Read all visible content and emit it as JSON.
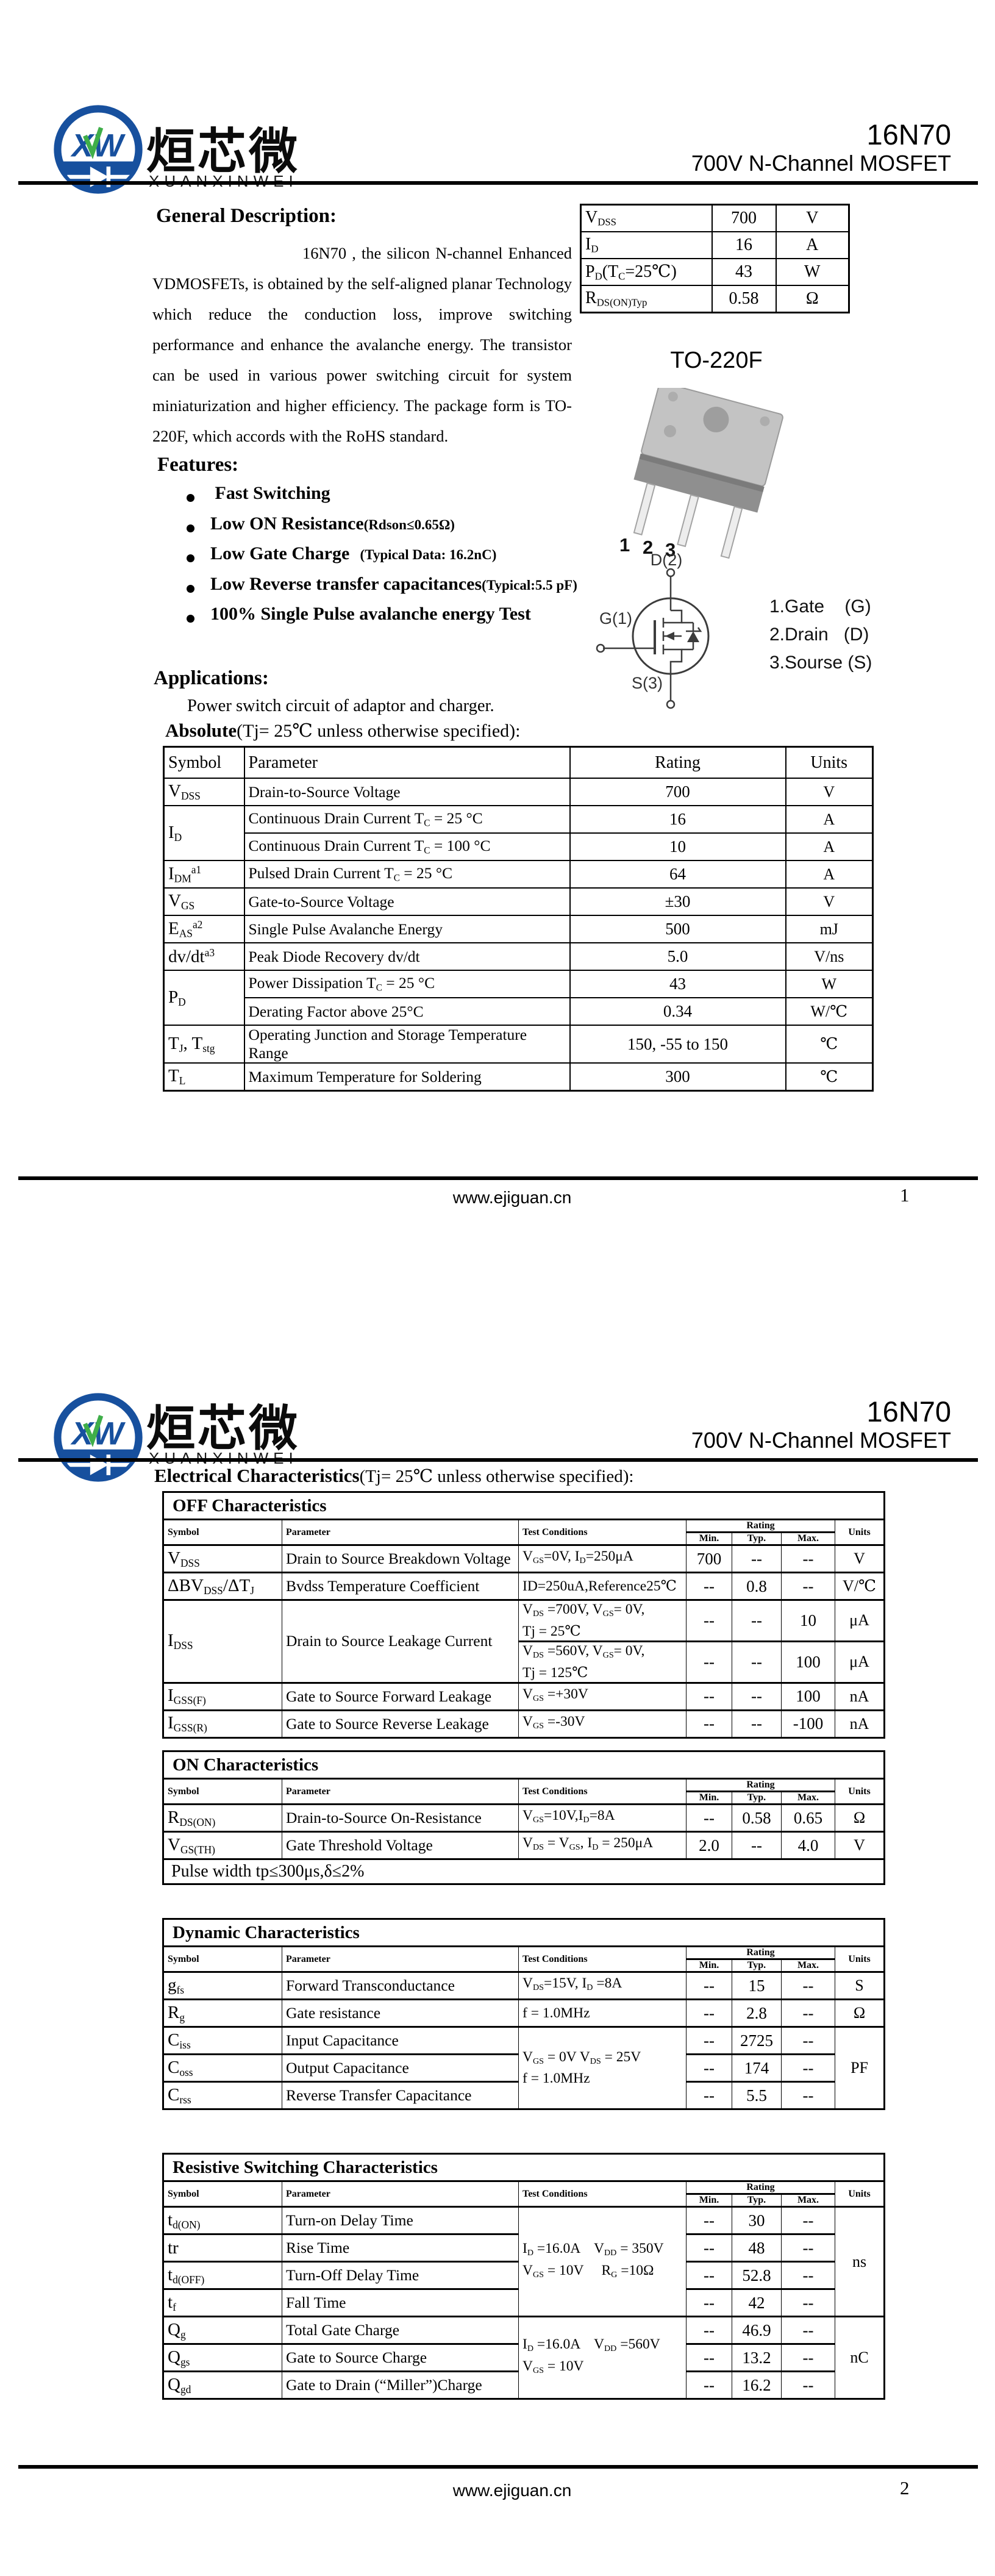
{
  "brand": {
    "cn": "烜芯微",
    "en": "XUANXINWEI"
  },
  "doc": {
    "part": "16N70",
    "subtitle": "700V N-Channel MOSFET"
  },
  "footer": {
    "site": "www.ejiguan.cn",
    "page1": "1",
    "page2": "2"
  },
  "colors": {
    "logo_blue": "#17509e",
    "logo_green": "#3fae49",
    "text": "#000000"
  },
  "page1": {
    "general_title": "General Description:",
    "general_text": "16N70 , the silicon N-channel Enhanced VDMOSFETs, is obtained by the self-aligned planar Technology which reduce the conduction loss, improve switching performance and enhance the avalanche energy. The transistor can be used in various power switching circuit for system miniaturization and higher efficiency. The package form is TO-220F, which accords with the RoHS standard.",
    "quick_specs": [
      {
        "symbol": "V~DSS~",
        "value": "700",
        "unit": "V"
      },
      {
        "symbol": "I~D~",
        "value": "16",
        "unit": "A"
      },
      {
        "symbol": "P~D~(T~C~=25℃)",
        "value": "43",
        "unit": "W"
      },
      {
        "symbol": "R~DS(ON)Typ~",
        "value": "0.58",
        "unit": "Ω"
      }
    ],
    "package": {
      "name": "TO-220F",
      "pins": [
        "1",
        "2",
        "3"
      ],
      "drain": "D(2)",
      "gate": "G(1)",
      "source": "S(3)",
      "legend": [
        "1.Gate    (G)",
        "2.Drain   (D)",
        "3.Sourse (S)"
      ]
    },
    "features_title": "Features:",
    "features": [
      {
        "main": " Fast Switching",
        "note": ""
      },
      {
        "main": "Low ON Resistance",
        "note": "(Rdson≤0.65Ω)"
      },
      {
        "main": "Low Gate Charge",
        "note": "   (Typical Data: 16.2nC)"
      },
      {
        "main": "Low Reverse transfer capacitances",
        "note": "(Typical:5.5 pF)"
      },
      {
        "main": "100% Single Pulse avalanche energy Test",
        "note": ""
      }
    ],
    "applications_title": "Applications:",
    "applications_text": "Power switch circuit of adaptor and charger.",
    "absolute_title": "Absolute",
    "absolute_note": "(Tj= 25℃ unless otherwise specified):",
    "absolute_headers": [
      "Symbol",
      "Parameter",
      "Rating",
      "Units"
    ],
    "absolute_rows": [
      [
        {
          "t": "V~DSS~"
        },
        {
          "t": "Drain-to-Source Voltage"
        },
        {
          "t": "700"
        },
        {
          "t": "V"
        }
      ],
      [
        {
          "t": "I~D~",
          "rs": 2
        },
        {
          "t": "Continuous Drain Current T~C~ = 25 °C"
        },
        {
          "t": "16"
        },
        {
          "t": "A"
        }
      ],
      [
        {
          "t": "Continuous Drain Current T~C~ = 100 °C"
        },
        {
          "t": "10"
        },
        {
          "t": "A"
        }
      ],
      [
        {
          "t": "I~DM~^a1^"
        },
        {
          "t": "Pulsed Drain Current T~C~ = 25 °C"
        },
        {
          "t": "64"
        },
        {
          "t": "A"
        }
      ],
      [
        {
          "t": "V~GS~"
        },
        {
          "t": "Gate-to-Source Voltage"
        },
        {
          "t": "±30"
        },
        {
          "t": "V"
        }
      ],
      [
        {
          "t": "E~AS~^a2^"
        },
        {
          "t": "Single Pulse Avalanche Energy"
        },
        {
          "t": "500"
        },
        {
          "t": "mJ"
        }
      ],
      [
        {
          "t": "dv/dt^a3^"
        },
        {
          "t": "Peak Diode Recovery dv/dt"
        },
        {
          "t": "5.0"
        },
        {
          "t": "V/ns"
        }
      ],
      [
        {
          "t": "P~D~",
          "rs": 2
        },
        {
          "t": "Power Dissipation T~C~ = 25 °C"
        },
        {
          "t": "43"
        },
        {
          "t": "W"
        }
      ],
      [
        {
          "t": "Derating Factor above 25°C"
        },
        {
          "t": "0.34"
        },
        {
          "t": "W/℃"
        }
      ],
      [
        {
          "t": "T~J~, T~stg~"
        },
        {
          "t": "Operating Junction and Storage Temperature Range"
        },
        {
          "t": "150, -55 to 150"
        },
        {
          "t": "℃"
        }
      ],
      [
        {
          "t": "T~L~"
        },
        {
          "t": "Maximum Temperature for Soldering"
        },
        {
          "t": "300"
        },
        {
          "t": "℃"
        }
      ]
    ]
  },
  "page2": {
    "ec_title": "Electrical Characteristics",
    "ec_note": "(Tj= 25℃  unless otherwise specified):",
    "col_headers": {
      "symbol": "Symbol",
      "parameter": "Parameter",
      "cond": "Test Conditions",
      "rating": "Rating",
      "min": "Min.",
      "typ": "Typ.",
      "max": "Max.",
      "units": "Units"
    },
    "tables": [
      {
        "section": "OFF Characteristics",
        "rows": [
          [
            {
              "t": "V~DSS~"
            },
            {
              "t": "Drain to Source Breakdown Voltage"
            },
            {
              "t": "V~GS~=0V, I~D~=250μA"
            },
            {
              "t": "700"
            },
            {
              "t": "--"
            },
            {
              "t": "--"
            },
            {
              "t": "V"
            }
          ],
          [
            {
              "t": "ΔBV~DSS~/ΔT~J~"
            },
            {
              "t": "Bvdss Temperature Coefficient"
            },
            {
              "t": "ID=250uA,Reference25℃"
            },
            {
              "t": "--"
            },
            {
              "t": "0.8"
            },
            {
              "t": "--"
            },
            {
              "t": "V/℃"
            }
          ],
          [
            {
              "t": "I~DSS~",
              "rs": 2
            },
            {
              "t": "Drain to Source Leakage Current",
              "rs": 2
            },
            {
              "t": "V~DS~ =700V, V~GS~= 0V,\nTj = 25℃"
            },
            {
              "t": "--"
            },
            {
              "t": "--"
            },
            {
              "t": "10"
            },
            {
              "t": "μA"
            }
          ],
          [
            {
              "t": "V~DS~ =560V, V~GS~= 0V,\nTj = 125℃"
            },
            {
              "t": "--"
            },
            {
              "t": "--"
            },
            {
              "t": "100"
            },
            {
              "t": "μA"
            }
          ],
          [
            {
              "t": "I~GSS(F)~"
            },
            {
              "t": "Gate to Source Forward Leakage"
            },
            {
              "t": "V~GS~ =+30V"
            },
            {
              "t": "--"
            },
            {
              "t": "--"
            },
            {
              "t": "100"
            },
            {
              "t": "nA"
            }
          ],
          [
            {
              "t": "I~GSS(R)~"
            },
            {
              "t": "Gate to Source Reverse Leakage"
            },
            {
              "t": "V~GS~ =-30V"
            },
            {
              "t": "--"
            },
            {
              "t": "--"
            },
            {
              "t": "-100"
            },
            {
              "t": "nA"
            }
          ]
        ]
      },
      {
        "section": "ON Characteristics",
        "note": "Pulse width tp≤300μs,δ≤2%",
        "rows": [
          [
            {
              "t": "R~DS(ON)~"
            },
            {
              "t": "Drain-to-Source On-Resistance"
            },
            {
              "t": "V~GS~=10V,I~D~=8A"
            },
            {
              "t": "--"
            },
            {
              "t": "0.58"
            },
            {
              "t": "0.65"
            },
            {
              "t": "Ω"
            }
          ],
          [
            {
              "t": "V~GS(TH)~"
            },
            {
              "t": "Gate Threshold Voltage"
            },
            {
              "t": "V~DS~ = V~GS~, I~D~ = 250μA"
            },
            {
              "t": "2.0"
            },
            {
              "t": "--"
            },
            {
              "t": "4.0"
            },
            {
              "t": "V"
            }
          ]
        ]
      },
      {
        "section": "Dynamic Characteristics",
        "rows": [
          [
            {
              "t": "g~fs~"
            },
            {
              "t": "Forward Transconductance"
            },
            {
              "t": "V~DS~=15V, I~D~ =8A"
            },
            {
              "t": "--"
            },
            {
              "t": "15"
            },
            {
              "t": "--"
            },
            {
              "t": "S"
            }
          ],
          [
            {
              "t": "R~g~"
            },
            {
              "t": "Gate resistance"
            },
            {
              "t": "f = 1.0MHz"
            },
            {
              "t": "--"
            },
            {
              "t": "2.8"
            },
            {
              "t": "--"
            },
            {
              "t": "Ω"
            }
          ],
          [
            {
              "t": "C~iss~"
            },
            {
              "t": "Input Capacitance"
            },
            {
              "t": "V~GS~ = 0V V~DS~ = 25V\nf = 1.0MHz",
              "rs": 3
            },
            {
              "t": "--"
            },
            {
              "t": "2725"
            },
            {
              "t": "--"
            },
            {
              "t": "PF",
              "rs": 3
            }
          ],
          [
            {
              "t": "C~oss~"
            },
            {
              "t": "Output Capacitance"
            },
            {
              "t": "--"
            },
            {
              "t": "174"
            },
            {
              "t": "--"
            }
          ],
          [
            {
              "t": "C~rss~"
            },
            {
              "t": "Reverse Transfer Capacitance"
            },
            {
              "t": "--"
            },
            {
              "t": "5.5"
            },
            {
              "t": "--"
            }
          ]
        ]
      },
      {
        "section": "Resistive Switching Characteristics",
        "rows": [
          [
            {
              "t": "t~d(ON)~"
            },
            {
              "t": "Turn-on Delay Time"
            },
            {
              "t": "I~D~ =16.0A    V~DD~ = 350V\nV~GS~ = 10V     R~G~ =10Ω",
              "rs": 4
            },
            {
              "t": "--"
            },
            {
              "t": "30"
            },
            {
              "t": "--"
            },
            {
              "t": "ns",
              "rs": 4
            }
          ],
          [
            {
              "t": "tr"
            },
            {
              "t": "Rise Time"
            },
            {
              "t": "--"
            },
            {
              "t": "48"
            },
            {
              "t": "--"
            }
          ],
          [
            {
              "t": "t~d(OFF)~"
            },
            {
              "t": "Turn-Off Delay Time"
            },
            {
              "t": "--"
            },
            {
              "t": "52.8"
            },
            {
              "t": "--"
            }
          ],
          [
            {
              "t": "t~f~"
            },
            {
              "t": "Fall Time"
            },
            {
              "t": "--"
            },
            {
              "t": "42"
            },
            {
              "t": "--"
            }
          ],
          [
            {
              "t": "Q~g~"
            },
            {
              "t": "Total Gate Charge"
            },
            {
              "t": "I~D~ =16.0A    V~DD~ =560V\nV~GS~ = 10V",
              "rs": 3
            },
            {
              "t": "--"
            },
            {
              "t": "46.9"
            },
            {
              "t": "--"
            },
            {
              "t": "nC",
              "rs": 3
            }
          ],
          [
            {
              "t": "Q~gs~"
            },
            {
              "t": "Gate to Source Charge"
            },
            {
              "t": "--"
            },
            {
              "t": "13.2"
            },
            {
              "t": "--"
            }
          ],
          [
            {
              "t": "Q~gd~"
            },
            {
              "t": "Gate to Drain (“Miller”)Charge"
            },
            {
              "t": "--"
            },
            {
              "t": "16.2"
            },
            {
              "t": "--"
            }
          ]
        ]
      }
    ]
  }
}
